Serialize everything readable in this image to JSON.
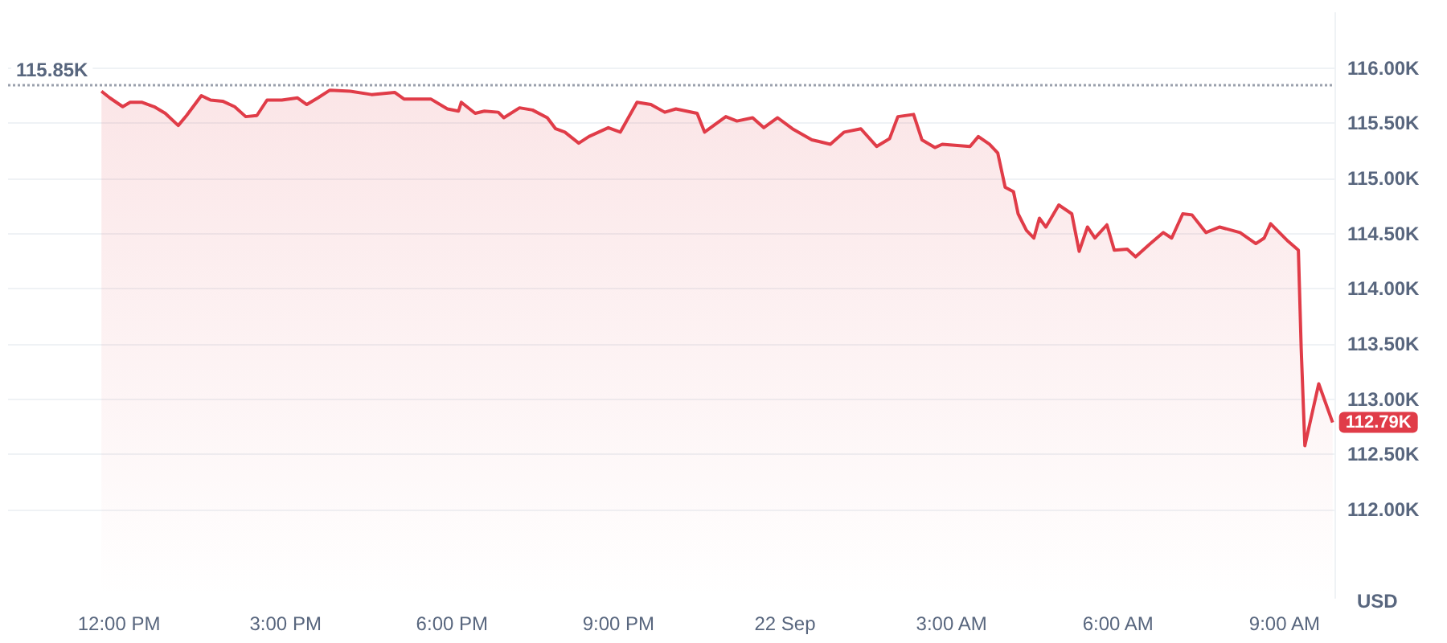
{
  "chart_data": {
    "type": "area",
    "ylabel": "USD",
    "grid": "y",
    "marker": "none",
    "xlim": [
      "--09-21T10:00",
      "--09-22T09:54"
    ],
    "xticks": [
      {
        "value": "--09-21T12:00",
        "label": "12:00 PM"
      },
      {
        "value": "--09-21T15:00",
        "label": "3:00 PM"
      },
      {
        "value": "--09-21T18:00",
        "label": "6:00 PM"
      },
      {
        "value": "--09-21T21:00",
        "label": "9:00 PM"
      },
      {
        "value": "--09-22T00:00",
        "label": "22 Sep"
      },
      {
        "value": "--09-22T03:00",
        "label": "3:00 AM"
      },
      {
        "value": "--09-22T06:00",
        "label": "6:00 AM"
      },
      {
        "value": "--09-22T09:00",
        "label": "9:00 AM"
      }
    ],
    "ylim": [
      111.2,
      116.5
    ],
    "yticks": [
      {
        "value": 112,
        "label": "112.00K"
      },
      {
        "value": 112.5,
        "label": "112.50K"
      },
      {
        "value": 113,
        "label": "113.00K"
      },
      {
        "value": 113.5,
        "label": "113.50K"
      },
      {
        "value": 114,
        "label": "114.00K"
      },
      {
        "value": 114.5,
        "label": "114.50K"
      },
      {
        "value": 115,
        "label": "115.00K"
      },
      {
        "value": 115.5,
        "label": "115.50K"
      },
      {
        "value": 116,
        "label": "116.00K"
      }
    ],
    "x": [
      "--09-21T11:41",
      "--09-21T11:50",
      "--09-21T12:04",
      "--09-21T12:12",
      "--09-21T12:25",
      "--09-21T12:38",
      "--09-21T12:50",
      "--09-21T13:04",
      "--09-21T13:13",
      "--09-21T13:29",
      "--09-21T13:39",
      "--09-21T13:52",
      "--09-21T14:05",
      "--09-21T14:17",
      "--09-21T14:29",
      "--09-21T14:40",
      "--09-21T14:56",
      "--09-21T15:13",
      "--09-21T15:23",
      "--09-21T15:35",
      "--09-21T15:48",
      "--09-21T16:10",
      "--09-21T16:33",
      "--09-21T16:58",
      "--09-21T17:08",
      "--09-21T17:37",
      "--09-21T17:55",
      "--09-21T18:07",
      "--09-21T18:10",
      "--09-21T18:25",
      "--09-21T18:35",
      "--09-21T18:50",
      "--09-21T18:56",
      "--09-21T19:13",
      "--09-21T19:27",
      "--09-21T19:43",
      "--09-21T19:52",
      "--09-21T20:02",
      "--09-21T20:17",
      "--09-21T20:28",
      "--09-21T20:49",
      "--09-21T21:02",
      "--09-21T21:20",
      "--09-21T21:35",
      "--09-21T21:50",
      "--09-21T22:02",
      "--09-21T22:25",
      "--09-21T22:33",
      "--09-21T22:56",
      "--09-21T23:08",
      "--09-21T23:25",
      "--09-21T23:37",
      "--09-21T23:52",
      "--09-22T00:08",
      "--09-22T00:29",
      "--09-22T00:49",
      "--09-22T01:04",
      "--09-22T01:22",
      "--09-22T01:39",
      "--09-22T01:53",
      "--09-22T02:02",
      "--09-22T02:19",
      "--09-22T02:28",
      "--09-22T02:42",
      "--09-22T02:50",
      "--09-22T03:20",
      "--09-22T03:29",
      "--09-22T03:41",
      "--09-22T03:50",
      "--09-22T03:58",
      "--09-22T04:07",
      "--09-22T04:12",
      "--09-22T04:21",
      "--09-22T04:29",
      "--09-22T04:35",
      "--09-22T04:42",
      "--09-22T04:56",
      "--09-22T05:10",
      "--09-22T05:18",
      "--09-22T05:27",
      "--09-22T05:35",
      "--09-22T05:48",
      "--09-22T05:56",
      "--09-22T06:10",
      "--09-22T06:19",
      "--09-22T06:35",
      "--09-22T06:49",
      "--09-22T06:58",
      "--09-22T07:10",
      "--09-22T07:20",
      "--09-22T07:35",
      "--09-22T07:50",
      "--09-22T08:12",
      "--09-22T08:29",
      "--09-22T08:38",
      "--09-22T08:45",
      "--09-22T09:04",
      "--09-22T09:15",
      "--09-22T09:18",
      "--09-22T09:22",
      "--09-22T09:37",
      "--09-22T09:52"
    ],
    "series": [
      {
        "color": "#e03c48",
        "values": [
          115.79,
          115.73,
          115.65,
          115.69,
          115.69,
          115.65,
          115.59,
          115.48,
          115.57,
          115.75,
          115.71,
          115.7,
          115.65,
          115.56,
          115.57,
          115.71,
          115.71,
          115.73,
          115.67,
          115.73,
          115.8,
          115.79,
          115.76,
          115.78,
          115.72,
          115.72,
          115.63,
          115.61,
          115.69,
          115.59,
          115.61,
          115.6,
          115.55,
          115.64,
          115.62,
          115.55,
          115.45,
          115.42,
          115.32,
          115.38,
          115.46,
          115.42,
          115.69,
          115.67,
          115.6,
          115.63,
          115.59,
          115.42,
          115.56,
          115.52,
          115.55,
          115.46,
          115.55,
          115.45,
          115.35,
          115.31,
          115.42,
          115.45,
          115.29,
          115.36,
          115.56,
          115.58,
          115.35,
          115.28,
          115.31,
          115.29,
          115.38,
          115.31,
          115.23,
          114.92,
          114.88,
          114.68,
          114.53,
          114.46,
          114.64,
          114.56,
          114.76,
          114.68,
          114.34,
          114.56,
          114.46,
          114.58,
          114.35,
          114.36,
          114.29,
          114.41,
          114.51,
          114.46,
          114.68,
          114.67,
          114.51,
          114.56,
          114.51,
          114.41,
          114.46,
          114.59,
          114.43,
          114.35,
          113.47,
          112.58,
          113.14,
          112.79
        ]
      }
    ],
    "ref_lines": [
      {
        "axis": "y",
        "value": 115.85,
        "label": "115.85K",
        "color": "#9aa0ac",
        "line_style": "dotted"
      }
    ],
    "annotations": [
      {
        "text": "112.79K",
        "x": "--09-22T09:52",
        "y": 112.79
      }
    ]
  }
}
